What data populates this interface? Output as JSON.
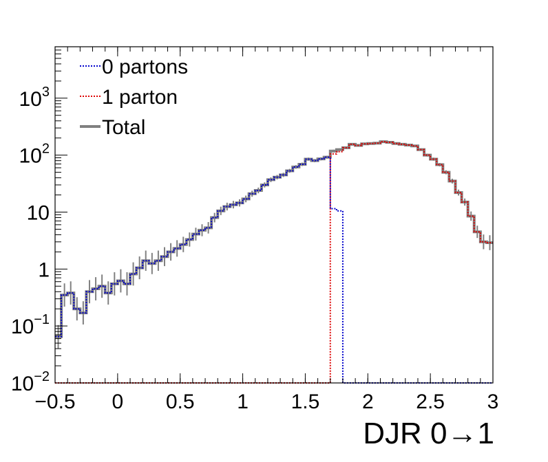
{
  "chart_data": {
    "type": "line",
    "xlabel": "DJR 0→1",
    "ylabel": "",
    "title": "",
    "xlim": [
      -0.5,
      3.0
    ],
    "ylim": [
      0.01,
      8000
    ],
    "yscale": "log",
    "bin_width": 0.05,
    "legend_position": "top-left",
    "x_ticks": [
      "−0.5",
      "0",
      "0.5",
      "1",
      "1.5",
      "2",
      "2.5",
      "3"
    ],
    "x_tick_values": [
      -0.5,
      0,
      0.5,
      1,
      1.5,
      2,
      2.5,
      3
    ],
    "y_ticks": [
      {
        "value": 0.01,
        "base": "10",
        "exp": "−2"
      },
      {
        "value": 0.1,
        "base": "10",
        "exp": "−1"
      },
      {
        "value": 1,
        "base": "1",
        "exp": ""
      },
      {
        "value": 10,
        "base": "10",
        "exp": ""
      },
      {
        "value": 100,
        "base": "10",
        "exp": "2"
      },
      {
        "value": 1000,
        "base": "10",
        "exp": "3"
      }
    ],
    "series": [
      {
        "name": "0 partons",
        "color": "#0000cc",
        "style": "dotted",
        "x_start": -0.5,
        "values": [
          0.065,
          0.35,
          0.38,
          0.2,
          0.17,
          0.4,
          0.45,
          0.5,
          0.38,
          0.55,
          0.62,
          0.55,
          0.82,
          1.05,
          1.4,
          1.25,
          1.4,
          1.65,
          2.0,
          2.3,
          2.7,
          3.3,
          4.1,
          4.8,
          5.3,
          8.0,
          10.5,
          12.5,
          13.5,
          14.5,
          17.0,
          21.0,
          24.0,
          30.0,
          37.0,
          41.0,
          45.0,
          53.0,
          62.0,
          69.0,
          85.0,
          80.0,
          86.0,
          92.0,
          11.5,
          10.5,
          0,
          0,
          0,
          0,
          0,
          0,
          0,
          0,
          0,
          0,
          0,
          0,
          0,
          0,
          0,
          0,
          0,
          0,
          0,
          0,
          0,
          0,
          0,
          0
        ]
      },
      {
        "name": "1 parton",
        "color": "#dd0000",
        "style": "dotted",
        "x_start": -0.5,
        "values": [
          0,
          0,
          0,
          0,
          0,
          0,
          0,
          0,
          0,
          0,
          0,
          0,
          0,
          0,
          0,
          0,
          0,
          0,
          0,
          0,
          0,
          0,
          0,
          0,
          0,
          0,
          0,
          0,
          0,
          0,
          0,
          0,
          0,
          0,
          0,
          0,
          0,
          0,
          0,
          0,
          0,
          0,
          0,
          0,
          105,
          115,
          135,
          155,
          148,
          158,
          160,
          162,
          172,
          168,
          160,
          155,
          150,
          145,
          125,
          100,
          85,
          68,
          50,
          35,
          22,
          15,
          8.5,
          4.5,
          3.0,
          2.9
        ]
      },
      {
        "name": "Total",
        "color": "#808080",
        "style": "solid",
        "x_start": -0.5,
        "values": [
          0.065,
          0.35,
          0.38,
          0.2,
          0.17,
          0.4,
          0.45,
          0.5,
          0.38,
          0.55,
          0.62,
          0.55,
          0.82,
          1.05,
          1.4,
          1.25,
          1.4,
          1.65,
          2.0,
          2.3,
          2.7,
          3.3,
          4.1,
          4.8,
          5.3,
          8.0,
          10.5,
          12.5,
          13.5,
          14.5,
          17.0,
          21.0,
          24.0,
          30.0,
          37.0,
          41.0,
          45.0,
          53.0,
          62.0,
          69.0,
          85.0,
          80.0,
          86.0,
          92.0,
          118,
          125,
          135,
          155,
          148,
          158,
          160,
          162,
          172,
          168,
          160,
          155,
          150,
          145,
          125,
          100,
          85,
          68,
          50,
          35,
          22,
          15,
          8.5,
          4.5,
          3.0,
          2.9
        ]
      }
    ]
  }
}
